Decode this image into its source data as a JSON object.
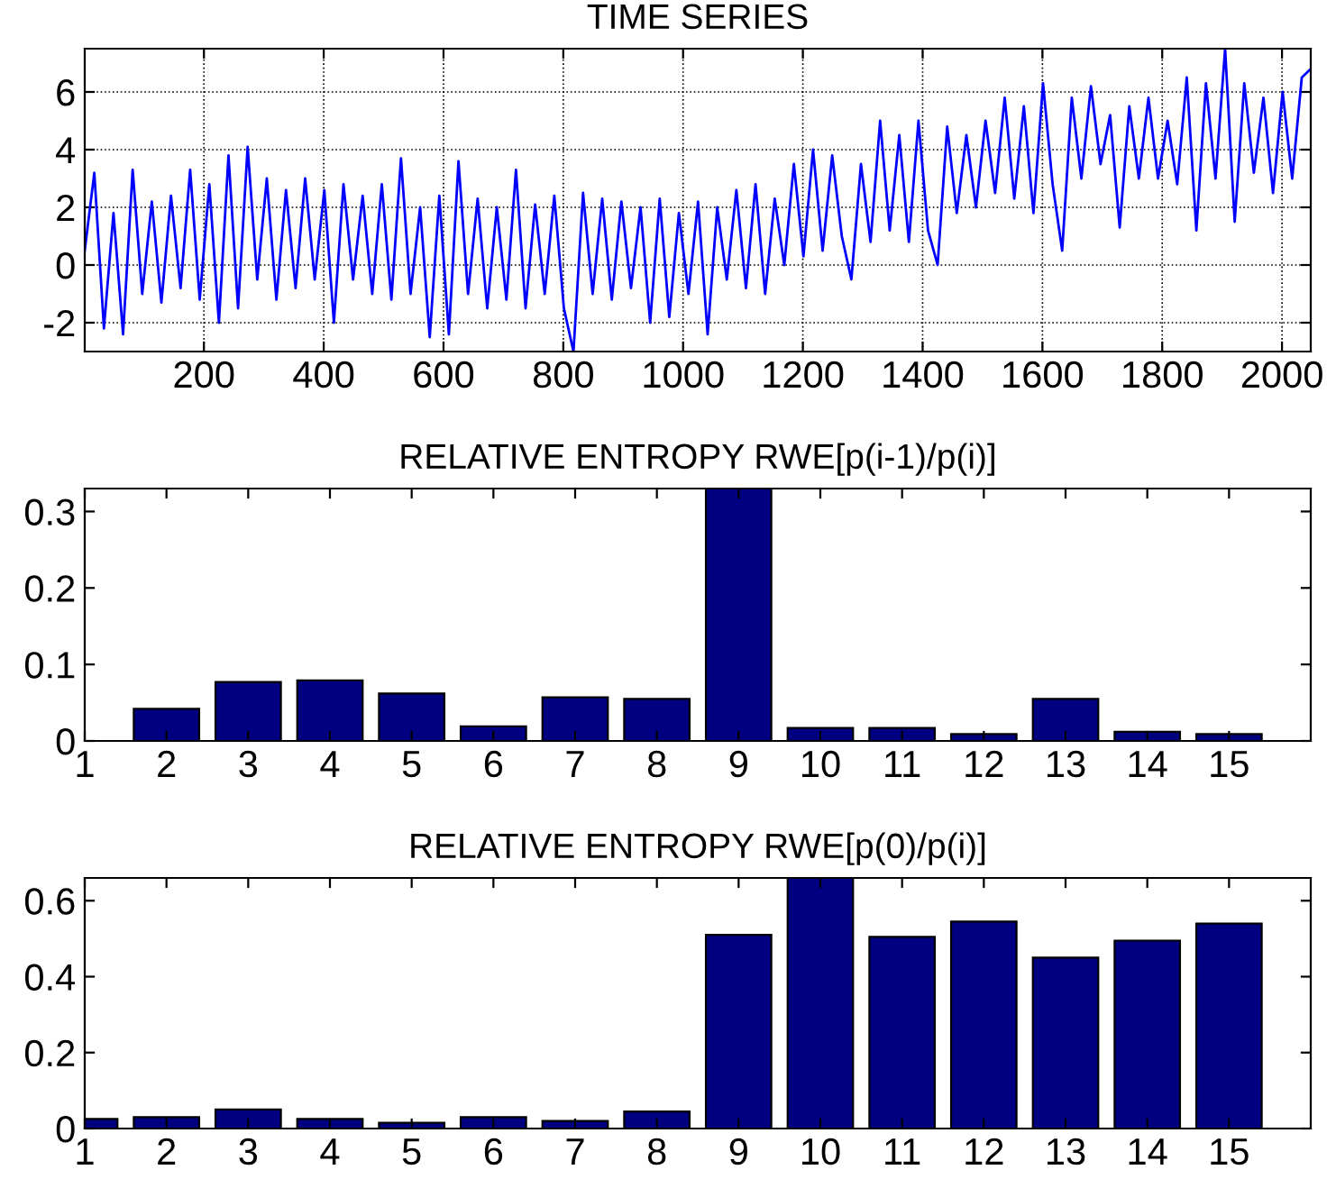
{
  "chart_data": [
    {
      "type": "line",
      "title": "TIME SERIES",
      "xlim": [
        1,
        2048
      ],
      "ylim": [
        -3,
        7.5
      ],
      "xticks": [
        200,
        400,
        600,
        800,
        1000,
        1200,
        1400,
        1600,
        1800,
        2000
      ],
      "yticks": [
        -2,
        0,
        2,
        4,
        6
      ],
      "grid": true,
      "series": [
        {
          "color": "#0000ff",
          "x": [
            1,
            17,
            33,
            49,
            65,
            81,
            97,
            113,
            129,
            145,
            161,
            177,
            193,
            209,
            225,
            241,
            257,
            273,
            289,
            305,
            321,
            337,
            353,
            369,
            385,
            401,
            417,
            433,
            449,
            465,
            481,
            497,
            513,
            529,
            545,
            561,
            577,
            593,
            609,
            625,
            641,
            657,
            673,
            689,
            705,
            721,
            737,
            753,
            769,
            785,
            801,
            817,
            833,
            849,
            865,
            881,
            897,
            913,
            929,
            945,
            961,
            977,
            993,
            1009,
            1025,
            1041,
            1057,
            1073,
            1089,
            1105,
            1121,
            1137,
            1153,
            1169,
            1185,
            1201,
            1217,
            1233,
            1249,
            1265,
            1281,
            1297,
            1313,
            1329,
            1345,
            1361,
            1377,
            1393,
            1409,
            1425,
            1441,
            1457,
            1473,
            1489,
            1505,
            1521,
            1537,
            1553,
            1569,
            1585,
            1601,
            1617,
            1633,
            1649,
            1665,
            1681,
            1697,
            1713,
            1729,
            1745,
            1761,
            1777,
            1793,
            1809,
            1825,
            1841,
            1857,
            1873,
            1889,
            1905,
            1921,
            1937,
            1953,
            1969,
            1985,
            2001,
            2017,
            2033,
            2048
          ],
          "values": [
            0.5,
            3.2,
            -2.2,
            1.8,
            -2.4,
            3.3,
            -1.0,
            2.2,
            -1.3,
            2.4,
            -0.8,
            3.3,
            -1.2,
            2.8,
            -2.0,
            3.8,
            -1.5,
            4.1,
            -0.5,
            3.0,
            -1.2,
            2.6,
            -0.8,
            3.0,
            -0.5,
            2.6,
            -2.0,
            2.8,
            -0.5,
            2.4,
            -1.0,
            2.8,
            -1.2,
            3.7,
            -1.0,
            2.0,
            -2.5,
            2.4,
            -2.4,
            3.6,
            -1.0,
            2.3,
            -1.5,
            2.0,
            -1.2,
            3.3,
            -1.5,
            2.1,
            -1.0,
            2.4,
            -1.5,
            -3.0,
            2.5,
            -1.0,
            2.3,
            -1.2,
            2.2,
            -0.8,
            2.0,
            -2.0,
            2.3,
            -1.8,
            1.8,
            -1.0,
            2.2,
            -2.4,
            2.0,
            -0.5,
            2.6,
            -0.8,
            2.8,
            -1.0,
            2.3,
            0.0,
            3.5,
            0.3,
            4.0,
            0.5,
            3.8,
            1.0,
            -0.5,
            3.5,
            0.8,
            5.0,
            1.2,
            4.5,
            0.8,
            5.0,
            1.2,
            0.0,
            4.8,
            1.8,
            4.5,
            2.0,
            5.0,
            2.5,
            5.8,
            2.3,
            5.5,
            1.8,
            6.3,
            2.8,
            0.5,
            5.8,
            3.0,
            6.2,
            3.5,
            5.2,
            1.3,
            5.5,
            3.0,
            5.8,
            3.0,
            5.0,
            2.8,
            6.5,
            1.2,
            6.3,
            3.0,
            7.5,
            1.5,
            6.3,
            3.2,
            5.8,
            2.5,
            6.0,
            3.0,
            6.5,
            6.8
          ]
        }
      ]
    },
    {
      "type": "bar",
      "title": "RELATIVE ENTROPY RWE[p(i-1)/p(i)]",
      "x": [
        2,
        3,
        4,
        5,
        6,
        7,
        8,
        9,
        10,
        11,
        12,
        13,
        14,
        15
      ],
      "values": [
        0.042,
        0.077,
        0.079,
        0.062,
        0.019,
        0.057,
        0.055,
        0.33,
        0.017,
        0.017,
        0.009,
        0.055,
        0.012,
        0.009
      ],
      "color": "#000080",
      "xlim": [
        1,
        16
      ],
      "ylim": [
        0,
        0.33
      ],
      "xticks": [
        1,
        2,
        3,
        4,
        5,
        6,
        7,
        8,
        9,
        10,
        11,
        12,
        13,
        14,
        15
      ],
      "yticks": [
        0,
        0.1,
        0.2,
        0.3
      ]
    },
    {
      "type": "bar",
      "title": "RELATIVE ENTROPY RWE[p(0)/p(i)]",
      "x": [
        1,
        2,
        3,
        4,
        5,
        6,
        7,
        8,
        9,
        10,
        11,
        12,
        13,
        14,
        15
      ],
      "values": [
        0.025,
        0.03,
        0.05,
        0.025,
        0.015,
        0.03,
        0.02,
        0.045,
        0.51,
        0.66,
        0.505,
        0.545,
        0.45,
        0.495,
        0.54
      ],
      "color": "#000080",
      "xlim": [
        1,
        16
      ],
      "ylim": [
        0,
        0.66
      ],
      "xticks": [
        1,
        2,
        3,
        4,
        5,
        6,
        7,
        8,
        9,
        10,
        11,
        12,
        13,
        14,
        15
      ],
      "yticks": [
        0,
        0.2,
        0.4,
        0.6
      ]
    }
  ]
}
